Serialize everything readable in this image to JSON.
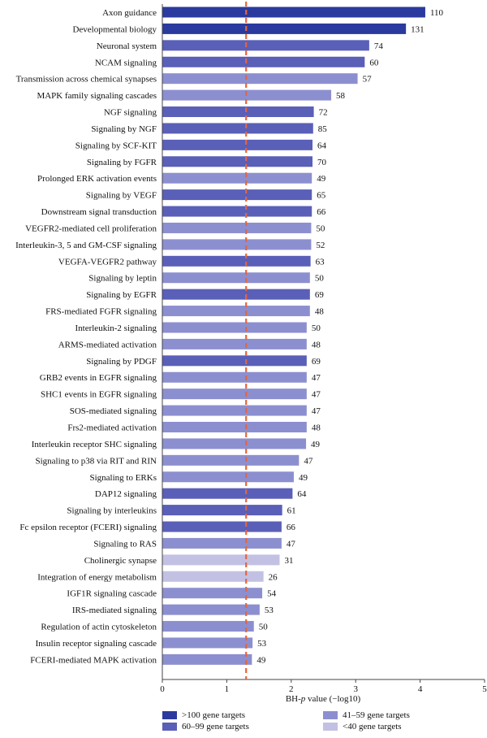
{
  "chart_data": {
    "type": "bar",
    "orientation": "horizontal",
    "xlabel_prefix": "BH-",
    "xlabel_italic": "p",
    "xlabel_suffix": " value (−log10)",
    "xlim": [
      0,
      5
    ],
    "xticks": [
      "0",
      "1",
      "2",
      "3",
      "4",
      "5"
    ],
    "threshold": 1.3,
    "threshold_color": "#e8643a",
    "grid": false,
    "legend_position": "bottom",
    "colors": {
      "gt100": "#2b3a9e",
      "60to99": "#5a5fb8",
      "41to59": "#8c8fcf",
      "lt40": "#c3c1e3"
    },
    "legend": [
      {
        "key": "gt100",
        "label": ">100 gene targets"
      },
      {
        "key": "60to99",
        "label": "60–99 gene targets"
      },
      {
        "key": "41to59",
        "label": "41–59 gene targets"
      },
      {
        "key": "lt40",
        "label": "<40 gene targets"
      }
    ],
    "categories": [
      {
        "name": "Axon guidance",
        "value": 4.08,
        "count": "110",
        "group": "gt100"
      },
      {
        "name": "Developmental biology",
        "value": 3.78,
        "count": "131",
        "group": "gt100"
      },
      {
        "name": "Neuronal system",
        "value": 3.21,
        "count": "74",
        "group": "60to99"
      },
      {
        "name": "NCAM signaling",
        "value": 3.14,
        "count": "60",
        "group": "60to99"
      },
      {
        "name": "Transmission across chemical synapses",
        "value": 3.03,
        "count": "57",
        "group": "41to59"
      },
      {
        "name": "MAPK family signaling cascades",
        "value": 2.62,
        "count": "58",
        "group": "41to59"
      },
      {
        "name": "NGF signaling",
        "value": 2.35,
        "count": "72",
        "group": "60to99"
      },
      {
        "name": "Signaling by NGF",
        "value": 2.34,
        "count": "85",
        "group": "60to99"
      },
      {
        "name": "Signaling by SCF-KIT",
        "value": 2.33,
        "count": "64",
        "group": "60to99"
      },
      {
        "name": "Signaling by FGFR",
        "value": 2.33,
        "count": "70",
        "group": "60to99"
      },
      {
        "name": "Prolonged ERK activation events",
        "value": 2.32,
        "count": "49",
        "group": "41to59"
      },
      {
        "name": "Signaling by VEGF",
        "value": 2.32,
        "count": "65",
        "group": "60to99"
      },
      {
        "name": "Downstream signal transduction",
        "value": 2.32,
        "count": "66",
        "group": "60to99"
      },
      {
        "name": "VEGFR2-mediated cell proliferation",
        "value": 2.31,
        "count": "50",
        "group": "41to59"
      },
      {
        "name": "Interleukin-3, 5 and GM-CSF signaling",
        "value": 2.31,
        "count": "52",
        "group": "41to59"
      },
      {
        "name": "VEGFA-VEGFR2 pathway",
        "value": 2.3,
        "count": "63",
        "group": "60to99"
      },
      {
        "name": "Signaling by leptin",
        "value": 2.29,
        "count": "50",
        "group": "41to59"
      },
      {
        "name": "Signaling by EGFR",
        "value": 2.29,
        "count": "69",
        "group": "60to99"
      },
      {
        "name": "FRS-mediated FGFR signaling",
        "value": 2.29,
        "count": "48",
        "group": "41to59"
      },
      {
        "name": "Interleukin-2 signaling",
        "value": 2.24,
        "count": "50",
        "group": "41to59"
      },
      {
        "name": "ARMS-mediated activation",
        "value": 2.24,
        "count": "48",
        "group": "41to59"
      },
      {
        "name": "Signaling by PDGF",
        "value": 2.24,
        "count": "69",
        "group": "60to99"
      },
      {
        "name": "GRB2 events in EGFR signaling",
        "value": 2.24,
        "count": "47",
        "group": "41to59"
      },
      {
        "name": "SHC1 events in EGFR signaling",
        "value": 2.24,
        "count": "47",
        "group": "41to59"
      },
      {
        "name": "SOS-mediated signaling",
        "value": 2.24,
        "count": "47",
        "group": "41to59"
      },
      {
        "name": "Frs2-mediated activation",
        "value": 2.24,
        "count": "48",
        "group": "41to59"
      },
      {
        "name": "Interleukin receptor SHC signaling",
        "value": 2.23,
        "count": "49",
        "group": "41to59"
      },
      {
        "name": "Signaling to p38 via RIT and RIN",
        "value": 2.12,
        "count": "47",
        "group": "41to59"
      },
      {
        "name": "Signaling to ERKs",
        "value": 2.04,
        "count": "49",
        "group": "41to59"
      },
      {
        "name": "DAP12 signaling",
        "value": 2.02,
        "count": "64",
        "group": "60to99"
      },
      {
        "name": "Signaling by interleukins",
        "value": 1.86,
        "count": "61",
        "group": "60to99"
      },
      {
        "name": "Fc epsilon receptor (FCERI) signaling",
        "value": 1.85,
        "count": "66",
        "group": "60to99"
      },
      {
        "name": "Signaling to RAS",
        "value": 1.85,
        "count": "47",
        "group": "41to59"
      },
      {
        "name": "Cholinergic synapse",
        "value": 1.82,
        "count": "31",
        "group": "lt40"
      },
      {
        "name": "Integration of energy metabolism",
        "value": 1.57,
        "count": "26",
        "group": "lt40"
      },
      {
        "name": "IGF1R signaling cascade",
        "value": 1.55,
        "count": "54",
        "group": "41to59"
      },
      {
        "name": "IRS-mediated signaling",
        "value": 1.51,
        "count": "53",
        "group": "41to59"
      },
      {
        "name": "Regulation of actin cytoskeleton",
        "value": 1.42,
        "count": "50",
        "group": "41to59"
      },
      {
        "name": "Insulin receptor signaling cascade",
        "value": 1.4,
        "count": "53",
        "group": "41to59"
      },
      {
        "name": "FCERI-mediated MAPK activation",
        "value": 1.39,
        "count": "49",
        "group": "41to59"
      }
    ]
  }
}
